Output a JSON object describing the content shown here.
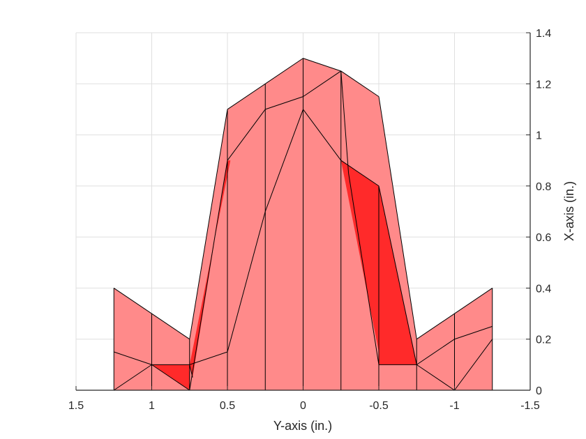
{
  "chart_data": {
    "type": "patch",
    "title": "",
    "xlabel": "Y-axis (in.)",
    "ylabel": "X-axis (in.)",
    "xlim": [
      1.5,
      -1.5
    ],
    "ylim": [
      0,
      1.4
    ],
    "x_reversed": true,
    "y_axis_location": "right",
    "grid": true,
    "x_ticks": [
      "1.5",
      "1",
      "0.5",
      "0",
      "-0.5",
      "-1",
      "-1.5"
    ],
    "y_ticks": [
      "0",
      "0.2",
      "0.4",
      "0.6",
      "0.8",
      "1",
      "1.2",
      "1.4"
    ],
    "colors": {
      "patch_fill": "#ff8a8a",
      "highlight_fill": "#ff2a2a",
      "edge": "#000000",
      "grid": "#dfdfdf",
      "axis": "#262626"
    },
    "outer_boundary": [
      [
        1.25,
        0
      ],
      [
        1.25,
        0.4
      ],
      [
        1,
        0.3
      ],
      [
        0.75,
        0.2
      ],
      [
        0.5,
        1.1
      ],
      [
        0.25,
        1.2
      ],
      [
        0,
        1.3
      ],
      [
        -0.25,
        1.25
      ],
      [
        -0.5,
        1.15
      ],
      [
        -0.75,
        0.2
      ],
      [
        -1,
        0.3
      ],
      [
        -1.25,
        0.4
      ],
      [
        -1.25,
        0
      ]
    ],
    "highlighted_regions": [
      [
        [
          1,
          0.1
        ],
        [
          0.75,
          0.1
        ],
        [
          0.75,
          0
        ]
      ],
      [
        [
          0.75,
          0.1
        ],
        [
          0.73,
          0.05
        ],
        [
          0.5,
          0.9
        ],
        [
          0.48,
          0.9
        ]
      ],
      [
        [
          -0.25,
          0.9
        ],
        [
          -0.5,
          0.8
        ],
        [
          -0.75,
          0.1
        ],
        [
          -0.5,
          0.1
        ],
        [
          -0.5,
          0.15
        ]
      ]
    ]
  }
}
